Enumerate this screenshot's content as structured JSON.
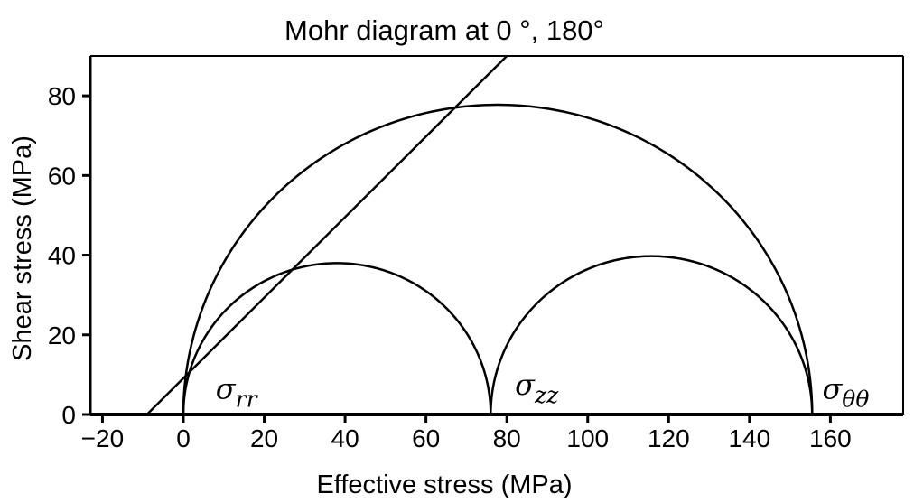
{
  "chart_data": {
    "type": "line",
    "title": "Mohr diagram at 0 °, 180°",
    "xlabel": "Effective stress (MPa)",
    "ylabel": "Shear stress (MPa)",
    "xlim": [
      -23,
      178
    ],
    "ylim": [
      0,
      90
    ],
    "xticks": [
      -20,
      0,
      20,
      40,
      60,
      80,
      100,
      120,
      140,
      160
    ],
    "xtick_labels": [
      "−20",
      "0",
      "20",
      "40",
      "60",
      "80",
      "100",
      "120",
      "140",
      "160"
    ],
    "yticks": [
      0,
      20,
      40,
      60,
      80
    ],
    "ytick_labels": [
      "0",
      "20",
      "40",
      "60",
      "80"
    ],
    "grid": false,
    "circles": [
      {
        "from": 0,
        "to": 76
      },
      {
        "from": 76,
        "to": 155.5
      },
      {
        "from": 0,
        "to": 155.5
      }
    ],
    "failure_line": {
      "x": [
        -9,
        80
      ],
      "y": [
        0,
        90
      ]
    },
    "annotations": [
      {
        "symbol": "σ",
        "subscript": "rr",
        "x": 8,
        "y": 4
      },
      {
        "symbol": "σ",
        "subscript": "zz",
        "x": 82,
        "y": 5
      },
      {
        "symbol": "σ",
        "subscript": "θθ",
        "x": 158,
        "y": 4
      }
    ]
  }
}
